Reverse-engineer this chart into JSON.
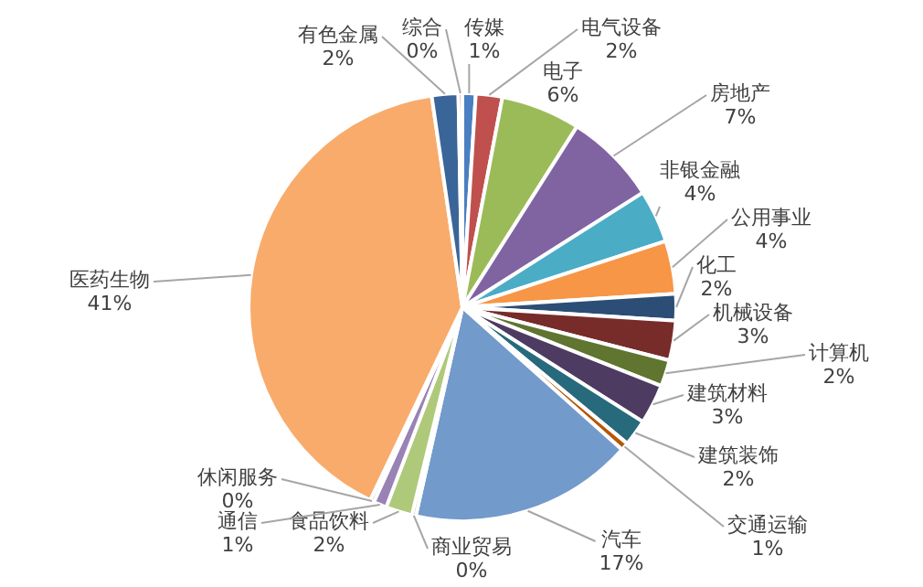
{
  "chart_data": {
    "type": "pie",
    "categories": [
      "传媒",
      "电气设备",
      "电子",
      "房地产",
      "非银金融",
      "公用事业",
      "化工",
      "机械设备",
      "计算机",
      "建筑材料",
      "建筑装饰",
      "交通运输",
      "汽车",
      "商业贸易",
      "食品饮料",
      "通信",
      "休闲服务",
      "医药生物",
      "有色金属",
      "综合"
    ],
    "values": [
      1,
      2,
      6,
      7,
      4,
      4,
      2,
      3,
      2,
      3,
      2,
      0.6,
      16.9,
      0.3,
      2,
      1,
      0.3,
      40.6,
      2,
      0.3
    ],
    "value_labels": [
      "1%",
      "2%",
      "6%",
      "7%",
      "4%",
      "4%",
      "2%",
      "3%",
      "2%",
      "3%",
      "2%",
      "1%",
      "17%",
      "0%",
      "2%",
      "1%",
      "0%",
      "41%",
      "2%",
      "0%"
    ],
    "colors": [
      "#4a7fc1",
      "#c0504d",
      "#9bbb59",
      "#8064a2",
      "#4bacc6",
      "#f79646",
      "#2c4d75",
      "#772c2a",
      "#5f7530",
      "#4d3b62",
      "#276a7c",
      "#b65708",
      "#729aca",
      "#d4726e",
      "#afc97a",
      "#9983b5",
      "#6fbdd1",
      "#f9ab6b",
      "#3a6598",
      "#c0504d"
    ],
    "legend": false
  }
}
